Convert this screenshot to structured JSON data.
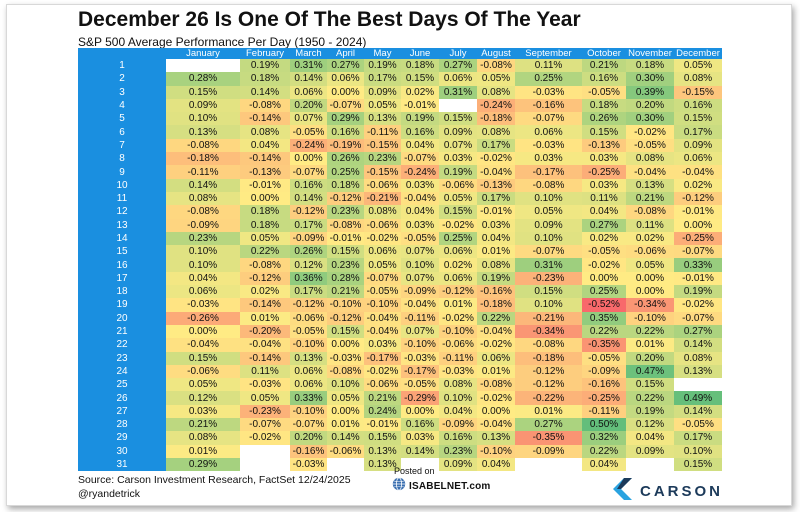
{
  "header": {
    "title": "December 26 Is One Of The Best Days Of The Year",
    "subtitle": "S&P 500 Average Performance Per Day (1950 - 2024)"
  },
  "footer": {
    "source": "Source: Carson Investment Research, FactSet 12/24/2025",
    "handle": "@ryandetrick",
    "posted_on": "Posted on",
    "isabelnet": "ISABELNET.com",
    "carson": "CARSON"
  },
  "colors": {
    "day_column": "#1a8fe0",
    "negative_strong": "#f8696b",
    "neutral": "#ffeb84",
    "positive_strong": "#63be7b",
    "carson_brand": "#1c3a5a"
  },
  "icons": [
    "isabelnet-globe-icon",
    "carson-chevron-logo"
  ],
  "chart_data": {
    "type": "heatmap",
    "title": "December 26 Is One Of The Best Days Of The Year",
    "subtitle": "S&P 500 Average Performance Per Day (1950 - 2024)",
    "columns": [
      "January",
      "February",
      "March",
      "April",
      "May",
      "June",
      "July",
      "August",
      "September",
      "October",
      "November",
      "December"
    ],
    "color_scale": {
      "min": -0.52,
      "mid": 0.0,
      "max": 0.5
    },
    "rows": [
      {
        "day": "1",
        "values": [
          null,
          "0.19%",
          "0.31%",
          "0.27%",
          "0.19%",
          "0.18%",
          "0.27%",
          "-0.08%",
          "0.11%",
          "0.21%",
          "0.18%",
          "0.05%"
        ]
      },
      {
        "day": "2",
        "values": [
          "0.28%",
          "0.18%",
          "0.14%",
          "0.06%",
          "0.17%",
          "0.15%",
          "0.06%",
          "0.05%",
          "0.25%",
          "0.16%",
          "0.30%",
          "0.08%"
        ]
      },
      {
        "day": "3",
        "values": [
          "0.15%",
          "0.14%",
          "0.06%",
          "0.00%",
          "0.09%",
          "0.02%",
          "0.31%",
          "0.08%",
          "-0.03%",
          "-0.05%",
          "0.39%",
          "-0.15%"
        ]
      },
      {
        "day": "4",
        "values": [
          "0.09%",
          "-0.08%",
          "0.20%",
          "-0.07%",
          "0.05%",
          "-0.01%",
          null,
          "-0.24%",
          "-0.16%",
          "0.18%",
          "0.20%",
          "0.16%"
        ]
      },
      {
        "day": "5",
        "values": [
          "0.10%",
          "-0.14%",
          "0.07%",
          "0.29%",
          "0.13%",
          "0.19%",
          "0.15%",
          "-0.18%",
          "-0.07%",
          "0.26%",
          "0.30%",
          "0.15%"
        ]
      },
      {
        "day": "6",
        "values": [
          "0.13%",
          "0.08%",
          "-0.05%",
          "0.16%",
          "-0.11%",
          "0.16%",
          "0.09%",
          "0.08%",
          "0.06%",
          "0.15%",
          "-0.02%",
          "0.17%"
        ]
      },
      {
        "day": "7",
        "values": [
          "-0.08%",
          "0.04%",
          "-0.24%",
          "-0.19%",
          "-0.15%",
          "0.04%",
          "0.07%",
          "0.17%",
          "-0.03%",
          "-0.13%",
          "-0.05%",
          "0.09%"
        ]
      },
      {
        "day": "8",
        "values": [
          "-0.18%",
          "-0.14%",
          "0.00%",
          "0.26%",
          "0.23%",
          "-0.07%",
          "0.03%",
          "-0.02%",
          "0.03%",
          "0.03%",
          "0.08%",
          "0.06%"
        ]
      },
      {
        "day": "9",
        "values": [
          "-0.11%",
          "-0.13%",
          "-0.07%",
          "0.25%",
          "-0.15%",
          "-0.24%",
          "0.19%",
          "-0.04%",
          "-0.17%",
          "-0.25%",
          "-0.04%",
          "-0.04%"
        ]
      },
      {
        "day": "10",
        "values": [
          "0.14%",
          "-0.01%",
          "0.16%",
          "0.18%",
          "-0.06%",
          "0.03%",
          "-0.06%",
          "-0.13%",
          "-0.08%",
          "0.03%",
          "0.13%",
          "0.02%"
        ]
      },
      {
        "day": "11",
        "values": [
          "0.08%",
          "0.00%",
          "0.14%",
          "-0.12%",
          "-0.21%",
          "-0.04%",
          "0.05%",
          "0.17%",
          "0.10%",
          "0.11%",
          "0.21%",
          "-0.12%"
        ]
      },
      {
        "day": "12",
        "values": [
          "-0.08%",
          "0.18%",
          "-0.12%",
          "0.23%",
          "0.08%",
          "0.04%",
          "0.15%",
          "-0.01%",
          "0.05%",
          "0.04%",
          "-0.08%",
          "-0.01%"
        ]
      },
      {
        "day": "13",
        "values": [
          "-0.09%",
          "0.18%",
          "0.17%",
          "-0.08%",
          "-0.06%",
          "0.03%",
          "-0.02%",
          "0.03%",
          "0.09%",
          "0.27%",
          "0.11%",
          "0.00%"
        ]
      },
      {
        "day": "14",
        "values": [
          "0.23%",
          "0.05%",
          "-0.09%",
          "-0.01%",
          "-0.02%",
          "-0.05%",
          "0.25%",
          "0.04%",
          "0.10%",
          "0.02%",
          "0.02%",
          "-0.25%"
        ]
      },
      {
        "day": "15",
        "values": [
          "0.10%",
          "0.22%",
          "0.26%",
          "0.15%",
          "0.06%",
          "0.07%",
          "0.06%",
          "0.01%",
          "-0.07%",
          "-0.05%",
          "-0.06%",
          "-0.07%"
        ]
      },
      {
        "day": "16",
        "values": [
          "0.10%",
          "-0.08%",
          "0.12%",
          "0.23%",
          "0.05%",
          "0.10%",
          "0.02%",
          "0.08%",
          "0.31%",
          "-0.02%",
          "0.05%",
          "0.33%"
        ]
      },
      {
        "day": "17",
        "values": [
          "0.04%",
          "-0.12%",
          "0.36%",
          "0.28%",
          "-0.07%",
          "0.07%",
          "0.06%",
          "0.19%",
          "-0.23%",
          "0.00%",
          "0.00%",
          "-0.01%"
        ]
      },
      {
        "day": "18",
        "values": [
          "0.06%",
          "0.02%",
          "0.17%",
          "0.21%",
          "-0.05%",
          "-0.09%",
          "-0.12%",
          "-0.16%",
          "0.15%",
          "0.25%",
          "0.00%",
          "0.19%"
        ]
      },
      {
        "day": "19",
        "values": [
          "-0.03%",
          "-0.14%",
          "-0.12%",
          "-0.10%",
          "-0.10%",
          "-0.04%",
          "0.01%",
          "-0.18%",
          "0.10%",
          "-0.52%",
          "-0.34%",
          "-0.02%"
        ]
      },
      {
        "day": "20",
        "values": [
          "-0.26%",
          "0.01%",
          "-0.06%",
          "-0.12%",
          "-0.04%",
          "-0.11%",
          "-0.02%",
          "0.22%",
          "-0.21%",
          "0.35%",
          "-0.10%",
          "-0.07%"
        ]
      },
      {
        "day": "21",
        "values": [
          "0.00%",
          "-0.20%",
          "-0.05%",
          "0.15%",
          "-0.04%",
          "0.07%",
          "-0.10%",
          "-0.04%",
          "-0.34%",
          "0.22%",
          "0.22%",
          "0.27%"
        ]
      },
      {
        "day": "22",
        "values": [
          "-0.04%",
          "-0.04%",
          "-0.10%",
          "0.00%",
          "0.03%",
          "-0.10%",
          "-0.06%",
          "-0.02%",
          "-0.08%",
          "-0.35%",
          "0.01%",
          "0.14%"
        ]
      },
      {
        "day": "23",
        "values": [
          "0.15%",
          "-0.14%",
          "0.13%",
          "-0.03%",
          "-0.17%",
          "-0.03%",
          "-0.11%",
          "0.06%",
          "-0.18%",
          "-0.05%",
          "0.20%",
          "0.08%"
        ]
      },
      {
        "day": "24",
        "values": [
          "-0.06%",
          "0.11%",
          "0.06%",
          "-0.08%",
          "-0.02%",
          "-0.17%",
          "-0.03%",
          "0.01%",
          "-0.12%",
          "-0.09%",
          "0.47%",
          "0.13%"
        ]
      },
      {
        "day": "25",
        "values": [
          "0.05%",
          "-0.03%",
          "0.06%",
          "0.10%",
          "-0.06%",
          "-0.05%",
          "0.08%",
          "-0.08%",
          "-0.12%",
          "-0.16%",
          "0.15%",
          null
        ]
      },
      {
        "day": "26",
        "values": [
          "0.12%",
          "0.05%",
          "0.33%",
          "0.05%",
          "0.21%",
          "-0.29%",
          "0.10%",
          "-0.02%",
          "-0.22%",
          "-0.25%",
          "0.22%",
          "0.49%"
        ]
      },
      {
        "day": "27",
        "values": [
          "0.03%",
          "-0.23%",
          "-0.10%",
          "0.00%",
          "0.24%",
          "0.00%",
          "0.04%",
          "0.00%",
          "0.01%",
          "-0.11%",
          "0.19%",
          "0.14%"
        ]
      },
      {
        "day": "28",
        "values": [
          "0.21%",
          "-0.07%",
          "-0.07%",
          "0.01%",
          "-0.01%",
          "0.16%",
          "-0.09%",
          "-0.04%",
          "0.27%",
          "0.50%",
          "0.12%",
          "-0.05%"
        ]
      },
      {
        "day": "29",
        "values": [
          "0.08%",
          "-0.02%",
          "0.20%",
          "0.14%",
          "0.15%",
          "0.03%",
          "0.16%",
          "0.13%",
          "-0.35%",
          "0.32%",
          "0.04%",
          "0.17%"
        ]
      },
      {
        "day": "30",
        "values": [
          "0.01%",
          null,
          "-0.16%",
          "-0.06%",
          "0.13%",
          "0.14%",
          "0.23%",
          "-0.10%",
          "-0.09%",
          "0.22%",
          "0.09%",
          "0.10%"
        ]
      },
      {
        "day": "31",
        "values": [
          "0.29%",
          null,
          "-0.03%",
          null,
          "0.13%",
          null,
          "0.09%",
          "0.04%",
          null,
          "0.04%",
          null,
          "0.15%"
        ]
      }
    ]
  }
}
